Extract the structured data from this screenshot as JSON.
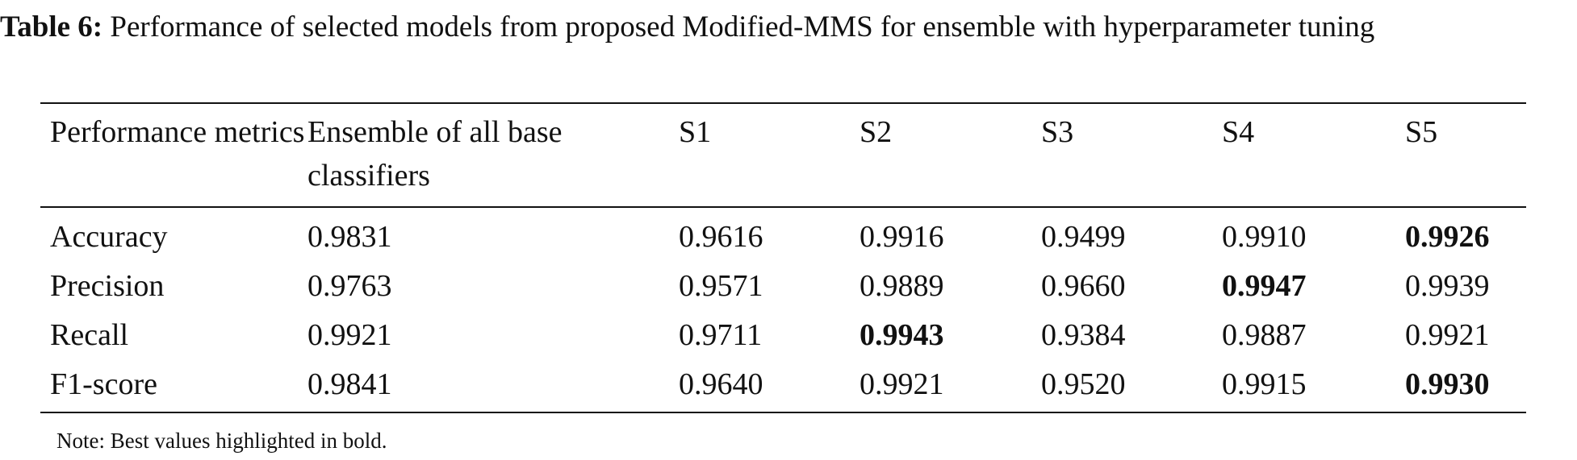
{
  "caption": {
    "label": "Table 6:",
    "text": "Performance of selected models from proposed Modified-MMS for ensemble with hyperparameter tuning"
  },
  "table": {
    "header": [
      "Performance metrics",
      "Ensemble of all base classifiers",
      "S1",
      "S2",
      "S3",
      "S4",
      "S5"
    ],
    "rows": [
      [
        "Accuracy",
        "0.9831",
        "0.9616",
        "0.9916",
        "0.9499",
        "0.9910",
        "0.9926"
      ],
      [
        "Precision",
        "0.9763",
        "0.9571",
        "0.9889",
        "0.9660",
        "0.9947",
        "0.9939"
      ],
      [
        "Recall",
        "0.9921",
        "0.9711",
        "0.9943",
        "0.9384",
        "0.9887",
        "0.9921"
      ],
      [
        "F1-score",
        "0.9841",
        "0.9640",
        "0.9921",
        "0.9520",
        "0.9915",
        "0.9930"
      ]
    ]
  },
  "note": "Note: Best values highlighted in bold."
}
